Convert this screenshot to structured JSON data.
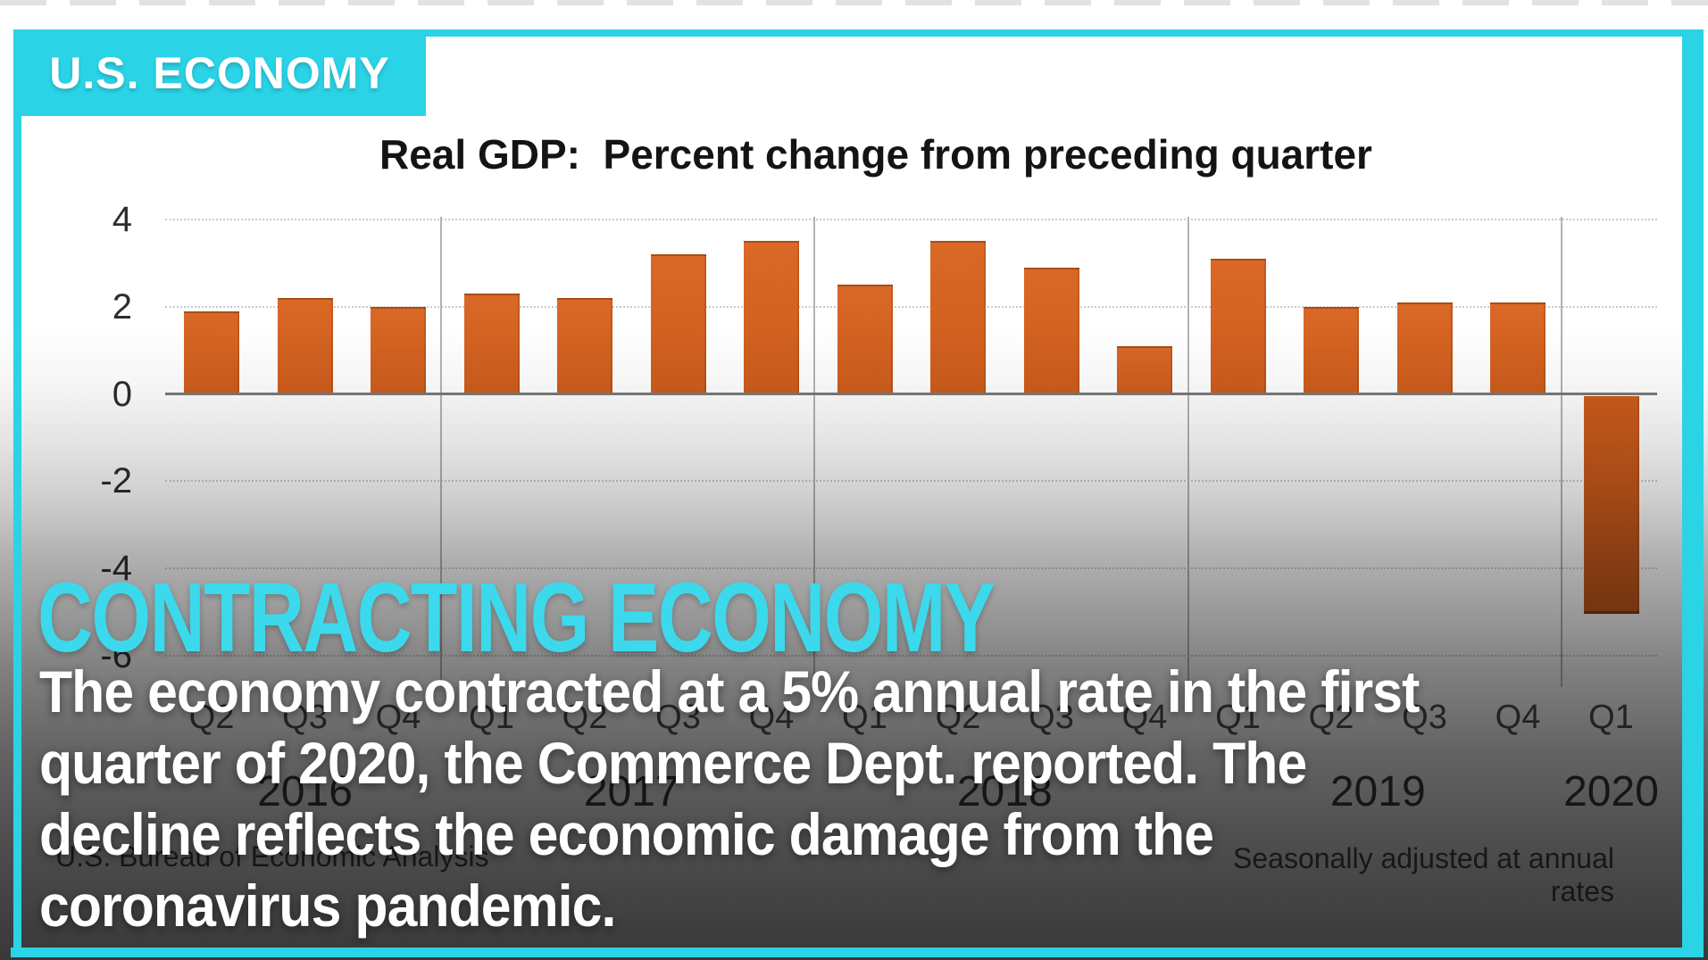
{
  "top_tag": {
    "label": "U.S. ECONOMY"
  },
  "chart_data": {
    "type": "bar",
    "title": "Real GDP:  Percent change from preceding quarter",
    "xlabel": "",
    "ylabel": "",
    "ylim": [
      -6,
      4
    ],
    "ytick_values": [
      4,
      2,
      0,
      -2,
      -4,
      -6
    ],
    "grid": "dotted horizontal gridlines every 2 units; solid vertical separators between years; solid zero axis",
    "legend": "none",
    "bar_color": "#d4611f",
    "series": [
      {
        "year": "2016",
        "quarter": "Q2",
        "value": 1.9
      },
      {
        "year": "2016",
        "quarter": "Q3",
        "value": 2.2
      },
      {
        "year": "2016",
        "quarter": "Q4",
        "value": 2.0
      },
      {
        "year": "2017",
        "quarter": "Q1",
        "value": 2.3
      },
      {
        "year": "2017",
        "quarter": "Q2",
        "value": 2.2
      },
      {
        "year": "2017",
        "quarter": "Q3",
        "value": 3.2
      },
      {
        "year": "2017",
        "quarter": "Q4",
        "value": 3.5
      },
      {
        "year": "2018",
        "quarter": "Q1",
        "value": 2.5
      },
      {
        "year": "2018",
        "quarter": "Q2",
        "value": 3.5
      },
      {
        "year": "2018",
        "quarter": "Q3",
        "value": 2.9
      },
      {
        "year": "2018",
        "quarter": "Q4",
        "value": 1.1
      },
      {
        "year": "2019",
        "quarter": "Q1",
        "value": 3.1
      },
      {
        "year": "2019",
        "quarter": "Q2",
        "value": 2.0
      },
      {
        "year": "2019",
        "quarter": "Q3",
        "value": 2.1
      },
      {
        "year": "2019",
        "quarter": "Q4",
        "value": 2.1
      },
      {
        "year": "2020",
        "quarter": "Q1",
        "value": -5.0
      }
    ],
    "source_left": "U.S. Bureau of Economic Analysis",
    "note_right": "Seasonally adjusted at annual rates"
  },
  "overlay": {
    "headline": "CONTRACTING ECONOMY",
    "body_lines": [
      "The economy contracted at a 5% annual rate in the first",
      "quarter of 2020, the Commerce Dept. reported. The",
      "decline reflects the economic damage from the",
      "coronavirus pandemic."
    ]
  },
  "colors": {
    "accent_cyan": "#2bd3e6",
    "headline_cyan": "#3cd9ec",
    "bar_orange": "#d4611f",
    "text_white": "#ffffff"
  }
}
